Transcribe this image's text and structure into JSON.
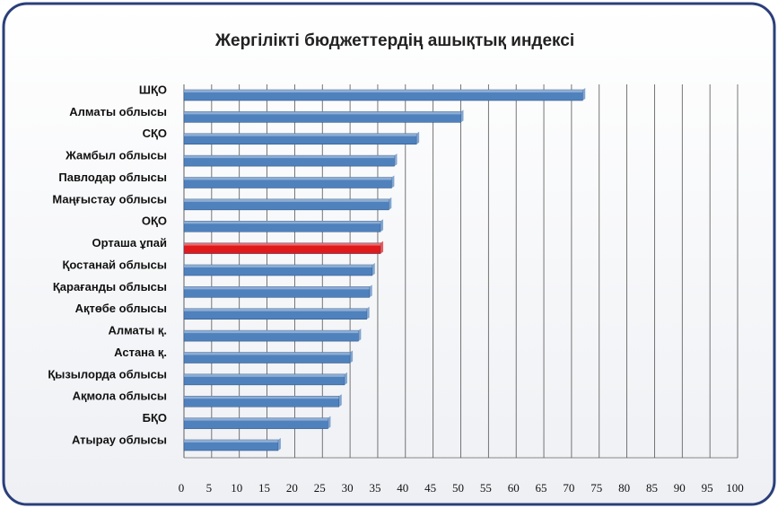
{
  "chart_data": {
    "type": "bar",
    "orientation": "horizontal",
    "title": "Жергілікті бюджеттердің ашықтық индексі",
    "categories": [
      "ШҚО",
      "Алматы облысы",
      "СҚО",
      "Жамбыл облысы",
      "Павлодар облысы",
      "Маңғыстау облысы",
      "ОҚО",
      "Орташа ұпай",
      "Қостанай облысы",
      "Қарағанды облысы",
      "Ақтөбе облысы",
      "Алматы қ.",
      "Астана қ.",
      "Қызылорда облысы",
      "Ақмола облысы",
      "БҚО",
      "Атырау облысы"
    ],
    "values": [
      72,
      50,
      42,
      38,
      37.5,
      37,
      35.5,
      35.5,
      34,
      33.5,
      33,
      31.5,
      30,
      29,
      28,
      26,
      17
    ],
    "colors": [
      "#4f81bd",
      "#4f81bd",
      "#4f81bd",
      "#4f81bd",
      "#4f81bd",
      "#4f81bd",
      "#4f81bd",
      "#e0191b",
      "#4f81bd",
      "#4f81bd",
      "#4f81bd",
      "#4f81bd",
      "#4f81bd",
      "#4f81bd",
      "#4f81bd",
      "#4f81bd",
      "#4f81bd"
    ],
    "xlim": [
      0,
      100
    ],
    "xticks": [
      0,
      5,
      10,
      15,
      20,
      25,
      30,
      35,
      40,
      45,
      50,
      55,
      60,
      65,
      70,
      75,
      80,
      85,
      90,
      95,
      100
    ],
    "grid": true
  }
}
